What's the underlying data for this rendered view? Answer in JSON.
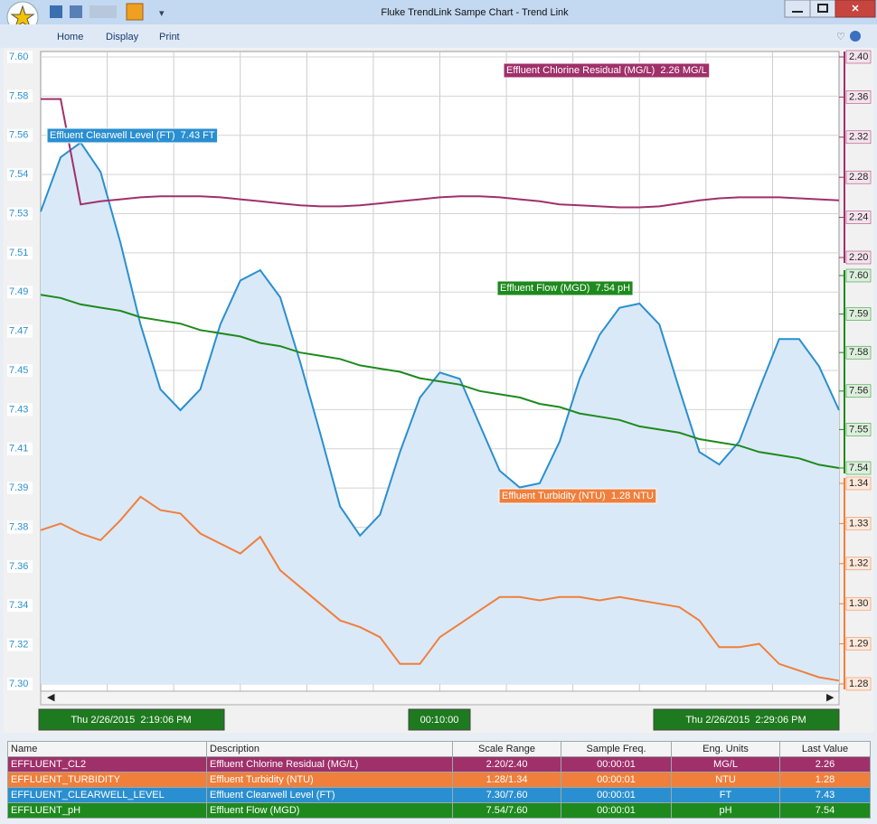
{
  "window": {
    "title": "Fluke TrendLink Sampe Chart - Trend Link"
  },
  "menu": [
    "Home",
    "Display",
    "Print"
  ],
  "chart_data": {
    "type": "line",
    "grid": true,
    "time_start": "Thu 2/26/2015  2:19:06 PM",
    "time_span": "00:10:00",
    "time_end": "Thu 2/26/2015  2:29:06 PM",
    "series": [
      {
        "tag": "Effluent Chlorine Residual (MG/L)  2.26 MG/L",
        "color": "#a0306a",
        "axis": "y2",
        "ylim": [
          2.2,
          2.4
        ],
        "yticks": [
          {
            "value": 2.2,
            "label": "2.20"
          },
          2.24,
          2.28,
          2.32,
          2.36,
          {
            "value": 2.4,
            "label": "2.40"
          }
        ],
        "values": [
          2.358,
          2.358,
          2.253,
          2.256,
          2.258,
          2.26,
          2.261,
          2.261,
          2.261,
          2.26,
          2.258,
          2.256,
          2.254,
          2.252,
          2.251,
          2.251,
          2.252,
          2.254,
          2.256,
          2.258,
          2.26,
          2.261,
          2.261,
          2.26,
          2.258,
          2.256,
          2.253,
          2.252,
          2.251,
          2.25,
          2.25,
          2.251,
          2.254,
          2.257,
          2.259,
          2.26,
          2.26,
          2.26,
          2.259,
          2.258,
          2.257
        ]
      },
      {
        "tag": "Effluent Turbidity (NTU)  1.28 NTU",
        "color": "#f07f3c",
        "axis": "y2",
        "ylim": [
          1.28,
          1.34
        ],
        "yticks": [
          1.28,
          {
            "value": 1.292,
            "label": "1.29"
          },
          {
            "value": 1.304,
            "label": "1.30"
          },
          {
            "value": 1.316,
            "label": "1.32"
          },
          {
            "value": 1.328,
            "label": "1.33"
          },
          1.34
        ],
        "values": [
          1.326,
          1.328,
          1.325,
          1.323,
          1.329,
          1.336,
          1.332,
          1.331,
          1.325,
          1.322,
          1.319,
          1.324,
          1.314,
          1.309,
          1.304,
          1.299,
          1.297,
          1.294,
          1.286,
          1.286,
          1.294,
          1.298,
          1.302,
          1.306,
          1.306,
          1.305,
          1.306,
          1.306,
          1.305,
          1.306,
          1.305,
          1.304,
          1.303,
          1.299,
          1.291,
          1.291,
          1.292,
          1.286,
          1.284,
          1.282,
          1.281
        ]
      },
      {
        "tag": "Effluent Clearwell Level (FT)  7.43 FT",
        "color": "#2a8fd0",
        "axis": "y",
        "fill": "#dae9f7",
        "ylim": [
          7.3,
          7.6
        ],
        "yticks": [
          {
            "value": 7.3,
            "label": "7.30"
          },
          {
            "value": 7.31875,
            "label": "7.32"
          },
          {
            "value": 7.3375,
            "label": "7.34"
          },
          {
            "value": 7.35625,
            "label": "7.36"
          },
          {
            "value": 7.375,
            "label": "7.38"
          },
          {
            "value": 7.39375,
            "label": "7.39"
          },
          {
            "value": 7.4125,
            "label": "7.41"
          },
          {
            "value": 7.43125,
            "label": "7.43"
          },
          7.45,
          {
            "value": 7.46875,
            "label": "7.47"
          },
          {
            "value": 7.4875,
            "label": "7.49"
          },
          {
            "value": 7.50625,
            "label": "7.51"
          },
          {
            "value": 7.525,
            "label": "7.53"
          },
          {
            "value": 7.54375,
            "label": "7.54"
          },
          {
            "value": 7.5625,
            "label": "7.56"
          },
          {
            "value": 7.58125,
            "label": "7.58"
          },
          {
            "value": 7.6,
            "label": "7.60"
          }
        ],
        "values": [
          7.526,
          7.552,
          7.559,
          7.545,
          7.511,
          7.472,
          7.441,
          7.431,
          7.441,
          7.472,
          7.493,
          7.498,
          7.485,
          7.454,
          7.42,
          7.385,
          7.371,
          7.381,
          7.411,
          7.437,
          7.449,
          7.446,
          7.424,
          7.402,
          7.394,
          7.396,
          7.416,
          7.446,
          7.467,
          7.48,
          7.482,
          7.472,
          7.441,
          7.411,
          7.405,
          7.416,
          7.441,
          7.465,
          7.465,
          7.452,
          7.431
        ]
      },
      {
        "tag": "Effluent Flow (MGD)  7.54 pH",
        "color": "#1e8a1e",
        "axis": "y2",
        "ylim": [
          7.54,
          7.6
        ],
        "yticks": [
          7.54,
          {
            "value": 7.552,
            "label": "7.55"
          },
          {
            "value": 7.564,
            "label": "7.56"
          },
          {
            "value": 7.576,
            "label": "7.58"
          },
          {
            "value": 7.588,
            "label": "7.59"
          },
          {
            "value": 7.6,
            "label": "7.60"
          }
        ],
        "values": [
          7.594,
          7.593,
          7.591,
          7.59,
          7.589,
          7.587,
          7.586,
          7.585,
          7.583,
          7.582,
          7.581,
          7.579,
          7.578,
          7.576,
          7.575,
          7.574,
          7.572,
          7.571,
          7.57,
          7.568,
          7.567,
          7.566,
          7.564,
          7.563,
          7.562,
          7.56,
          7.559,
          7.557,
          7.556,
          7.555,
          7.553,
          7.552,
          7.551,
          7.549,
          7.548,
          7.547,
          7.545,
          7.544,
          7.543,
          7.541,
          7.54
        ]
      }
    ]
  },
  "table": {
    "columns": [
      "Name",
      "Description",
      "Scale Range",
      "Sample Freq.",
      "Eng. Units",
      "Last Value"
    ],
    "rows": [
      [
        "EFFLUENT_CL2",
        "Effluent Chlorine Residual (MG/L)",
        "2.20/2.40",
        "00:00:01",
        "MG/L",
        "2.26"
      ],
      [
        "EFFLUENT_TURBIDITY",
        "Effluent Turbidity (NTU)",
        "1.28/1.34",
        "00:00:01",
        "NTU",
        "1.28"
      ],
      [
        "EFFLUENT_CLEARWELL_LEVEL",
        "Effluent Clearwell Level (FT)",
        "7.30/7.60",
        "00:00:01",
        "FT",
        "7.43"
      ],
      [
        "EFFLUENT_pH",
        "Effluent Flow (MGD)",
        "7.54/7.60",
        "00:00:01",
        "pH",
        "7.54"
      ]
    ]
  }
}
